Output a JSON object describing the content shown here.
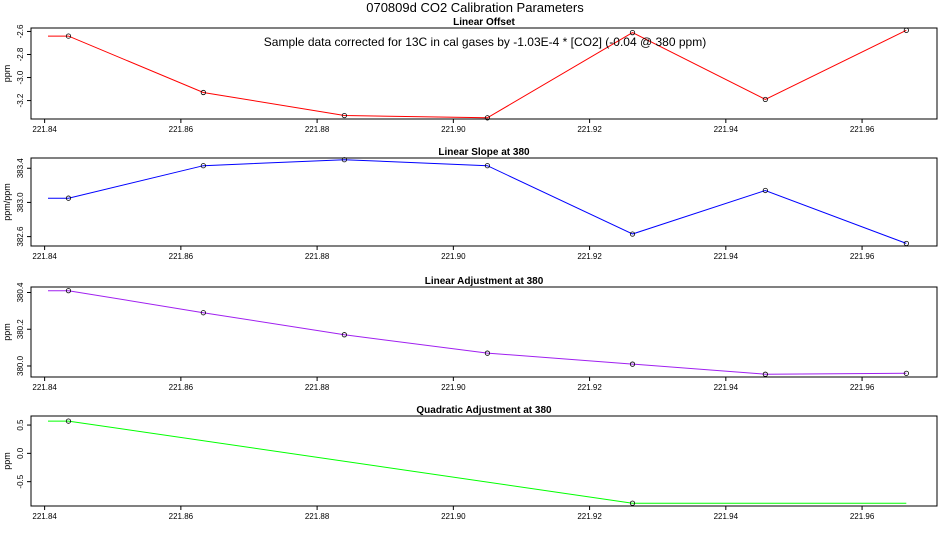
{
  "main_title": "070809d   CO2 Calibration Parameters",
  "annotation": "Sample data corrected for 13C in cal gases by -1.03E-4 * [CO2] (-0.04 @ 380 ppm)",
  "chart_data": [
    {
      "type": "line",
      "title": "Linear Offset",
      "ylabel": "ppm",
      "color": "#ff0000",
      "xlim": [
        221.838,
        221.971
      ],
      "ylim": [
        -3.36,
        -2.57
      ],
      "x_ticks": [
        221.84,
        221.86,
        221.88,
        221.9,
        221.92,
        221.94,
        221.96
      ],
      "x_tick_labels": [
        "221.84",
        "221.86",
        "221.88",
        "221.90",
        "221.92",
        "221.94",
        "221.96"
      ],
      "y_ticks": [
        -2.6,
        -2.8,
        -3.0,
        -3.2
      ],
      "y_tick_labels": [
        "-2.6",
        "-2.8",
        "-3.0",
        "-3.2"
      ],
      "x": [
        221.8435,
        221.8633,
        221.884,
        221.905,
        221.9263,
        221.9458,
        221.9665
      ],
      "y": [
        -2.64,
        -3.13,
        -3.33,
        -3.35,
        -2.61,
        -3.19,
        -2.59
      ],
      "line_start": 221.8405,
      "line_end": 221.9665
    },
    {
      "type": "line",
      "title": "Linear Slope at 380",
      "ylabel": "ppm/ppm",
      "color": "#0000ff",
      "xlim": [
        221.838,
        221.971
      ],
      "ylim": [
        382.49,
        383.52
      ],
      "x_ticks": [
        221.84,
        221.86,
        221.88,
        221.9,
        221.92,
        221.94,
        221.96
      ],
      "x_tick_labels": [
        "221.84",
        "221.86",
        "221.88",
        "221.90",
        "221.92",
        "221.94",
        "221.96"
      ],
      "y_ticks": [
        382.6,
        383.0,
        383.4
      ],
      "y_tick_labels": [
        "382.6",
        "383.0",
        "383.4"
      ],
      "x": [
        221.8435,
        221.8633,
        221.884,
        221.905,
        221.9263,
        221.9458,
        221.9665
      ],
      "y": [
        383.05,
        383.43,
        383.5,
        383.43,
        382.63,
        383.14,
        382.52
      ],
      "line_start": 221.8405,
      "line_end": 221.9665
    },
    {
      "type": "line",
      "title": "Linear Adjustment at 380",
      "ylabel": "ppm",
      "color": "#a020f0",
      "xlim": [
        221.838,
        221.971
      ],
      "ylim": [
        379.94,
        380.43
      ],
      "x_ticks": [
        221.84,
        221.86,
        221.88,
        221.9,
        221.92,
        221.94,
        221.96
      ],
      "x_tick_labels": [
        "221.84",
        "221.86",
        "221.88",
        "221.90",
        "221.92",
        "221.94",
        "221.96"
      ],
      "y_ticks": [
        380.0,
        380.2,
        380.4
      ],
      "y_tick_labels": [
        "380.0",
        "380.2",
        "380.4"
      ],
      "x": [
        221.8435,
        221.8633,
        221.884,
        221.905,
        221.9263,
        221.9458,
        221.9665
      ],
      "y": [
        380.41,
        380.29,
        380.17,
        380.07,
        380.01,
        379.955,
        379.96
      ],
      "line_start": 221.8405,
      "line_end": 221.9665
    },
    {
      "type": "line",
      "title": "Quadratic Adjustment at 380",
      "ylabel": "ppm",
      "color": "#00ff00",
      "xlim": [
        221.838,
        221.971
      ],
      "ylim": [
        -0.93,
        0.66
      ],
      "x_ticks": [
        221.84,
        221.86,
        221.88,
        221.9,
        221.92,
        221.94,
        221.96
      ],
      "x_tick_labels": [
        "221.84",
        "221.86",
        "221.88",
        "221.90",
        "221.92",
        "221.94",
        "221.96"
      ],
      "y_ticks": [
        0.5,
        0.0,
        -0.5
      ],
      "y_tick_labels": [
        "0.5",
        "0.0",
        "-0.5"
      ],
      "x": [
        221.8435,
        221.9263
      ],
      "y": [
        0.57,
        -0.88
      ],
      "line_start": 221.8405,
      "line_end": 221.9665
    }
  ]
}
